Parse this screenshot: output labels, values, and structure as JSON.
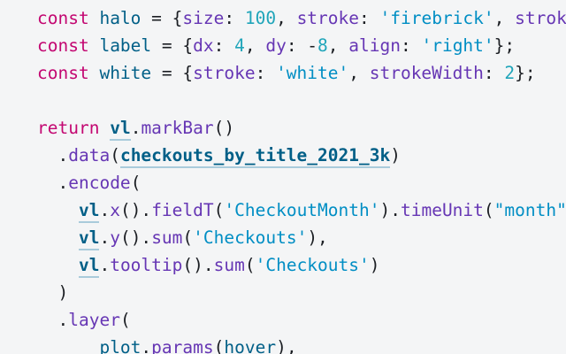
{
  "editor": {
    "description": "observable-notebook-code-cell",
    "background": "#f4f5f6",
    "palette": {
      "keyword": "#c30771",
      "variable": "#005f87",
      "property": "#6636b4",
      "number": "#20a5ba",
      "string": "#008ec4",
      "plain": "#1b1e23",
      "cell_reference": "#005f87",
      "cell_reference_underline": "#a9cbdb"
    },
    "lines": [
      {
        "segments": [
          {
            "text": "const",
            "type": "keyword"
          },
          {
            "text": " ",
            "type": "plain"
          },
          {
            "text": "halo",
            "type": "def"
          },
          {
            "text": " = {",
            "type": "plain"
          },
          {
            "text": "size",
            "type": "prop"
          },
          {
            "text": ": ",
            "type": "plain"
          },
          {
            "text": "100",
            "type": "num"
          },
          {
            "text": ", ",
            "type": "plain"
          },
          {
            "text": "stroke",
            "type": "prop"
          },
          {
            "text": ": ",
            "type": "plain"
          },
          {
            "text": "'firebrick'",
            "type": "str"
          },
          {
            "text": ", ",
            "type": "plain"
          },
          {
            "text": "strok",
            "type": "prop"
          }
        ]
      },
      {
        "segments": [
          {
            "text": "const",
            "type": "keyword"
          },
          {
            "text": " ",
            "type": "plain"
          },
          {
            "text": "label",
            "type": "def"
          },
          {
            "text": " = {",
            "type": "plain"
          },
          {
            "text": "dx",
            "type": "prop"
          },
          {
            "text": ": ",
            "type": "plain"
          },
          {
            "text": "4",
            "type": "num"
          },
          {
            "text": ", ",
            "type": "plain"
          },
          {
            "text": "dy",
            "type": "prop"
          },
          {
            "text": ": -",
            "type": "plain"
          },
          {
            "text": "8",
            "type": "num"
          },
          {
            "text": ", ",
            "type": "plain"
          },
          {
            "text": "align",
            "type": "prop"
          },
          {
            "text": ": ",
            "type": "plain"
          },
          {
            "text": "'right'",
            "type": "str"
          },
          {
            "text": "};",
            "type": "plain"
          }
        ]
      },
      {
        "segments": [
          {
            "text": "const",
            "type": "keyword"
          },
          {
            "text": " ",
            "type": "plain"
          },
          {
            "text": "white",
            "type": "def"
          },
          {
            "text": " = {",
            "type": "plain"
          },
          {
            "text": "stroke",
            "type": "prop"
          },
          {
            "text": ": ",
            "type": "plain"
          },
          {
            "text": "'white'",
            "type": "str"
          },
          {
            "text": ", ",
            "type": "plain"
          },
          {
            "text": "strokeWidth",
            "type": "prop"
          },
          {
            "text": ": ",
            "type": "plain"
          },
          {
            "text": "2",
            "type": "num"
          },
          {
            "text": "};",
            "type": "plain"
          }
        ]
      },
      {
        "segments": []
      },
      {
        "segments": [
          {
            "text": "return",
            "type": "keyword"
          },
          {
            "text": " ",
            "type": "plain"
          },
          {
            "text": "vl",
            "type": "ref"
          },
          {
            "text": ".",
            "type": "plain"
          },
          {
            "text": "markBar",
            "type": "prop"
          },
          {
            "text": "()",
            "type": "plain"
          }
        ]
      },
      {
        "segments": [
          {
            "text": "  .",
            "type": "plain"
          },
          {
            "text": "data",
            "type": "prop"
          },
          {
            "text": "(",
            "type": "plain"
          },
          {
            "text": "checkouts_by_title_2021_3k",
            "type": "ref"
          },
          {
            "text": ")",
            "type": "plain"
          }
        ]
      },
      {
        "segments": [
          {
            "text": "  .",
            "type": "plain"
          },
          {
            "text": "encode",
            "type": "prop"
          },
          {
            "text": "(",
            "type": "plain"
          }
        ]
      },
      {
        "segments": [
          {
            "text": "    ",
            "type": "plain"
          },
          {
            "text": "vl",
            "type": "ref"
          },
          {
            "text": ".",
            "type": "plain"
          },
          {
            "text": "x",
            "type": "prop"
          },
          {
            "text": "().",
            "type": "plain"
          },
          {
            "text": "fieldT",
            "type": "prop"
          },
          {
            "text": "(",
            "type": "plain"
          },
          {
            "text": "'CheckoutMonth'",
            "type": "str"
          },
          {
            "text": ").",
            "type": "plain"
          },
          {
            "text": "timeUnit",
            "type": "prop"
          },
          {
            "text": "(",
            "type": "plain"
          },
          {
            "text": "\"month\"",
            "type": "str"
          }
        ]
      },
      {
        "segments": [
          {
            "text": "    ",
            "type": "plain"
          },
          {
            "text": "vl",
            "type": "ref"
          },
          {
            "text": ".",
            "type": "plain"
          },
          {
            "text": "y",
            "type": "prop"
          },
          {
            "text": "().",
            "type": "plain"
          },
          {
            "text": "sum",
            "type": "prop"
          },
          {
            "text": "(",
            "type": "plain"
          },
          {
            "text": "'Checkouts'",
            "type": "str"
          },
          {
            "text": "),",
            "type": "plain"
          }
        ]
      },
      {
        "segments": [
          {
            "text": "    ",
            "type": "plain"
          },
          {
            "text": "vl",
            "type": "ref"
          },
          {
            "text": ".",
            "type": "plain"
          },
          {
            "text": "tooltip",
            "type": "prop"
          },
          {
            "text": "().",
            "type": "plain"
          },
          {
            "text": "sum",
            "type": "prop"
          },
          {
            "text": "(",
            "type": "plain"
          },
          {
            "text": "'Checkouts'",
            "type": "str"
          },
          {
            "text": ")",
            "type": "plain"
          }
        ]
      },
      {
        "segments": [
          {
            "text": "  )",
            "type": "plain"
          }
        ]
      },
      {
        "segments": [
          {
            "text": "  .",
            "type": "plain"
          },
          {
            "text": "layer",
            "type": "prop"
          },
          {
            "text": "(",
            "type": "plain"
          }
        ]
      },
      {
        "segments": [
          {
            "text": "      ",
            "type": "plain"
          },
          {
            "text": "plot",
            "type": "def"
          },
          {
            "text": ".",
            "type": "plain"
          },
          {
            "text": "params",
            "type": "prop"
          },
          {
            "text": "(",
            "type": "plain"
          },
          {
            "text": "hover",
            "type": "def"
          },
          {
            "text": "),",
            "type": "plain"
          }
        ]
      }
    ]
  }
}
